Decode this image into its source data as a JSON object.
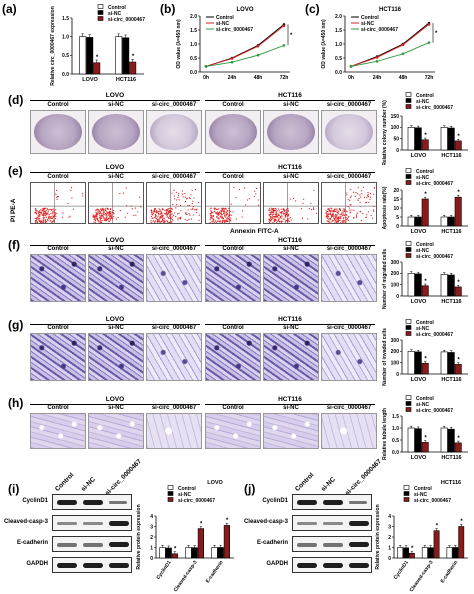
{
  "panels": {
    "a": "(a)",
    "b": "(b)",
    "c": "(c)",
    "d": "(d)",
    "e": "(e)",
    "f": "(f)",
    "g": "(g)",
    "h": "(h)",
    "i": "(i)",
    "j": "(j)"
  },
  "groups": [
    "Control",
    "si-NC",
    "si-circ_0000467"
  ],
  "group_colors": [
    "#ffffff",
    "#000000",
    "#8b1a1a"
  ],
  "cell_lines": [
    "LOVO",
    "HCT116"
  ],
  "sig_mark": "*",
  "flow": {
    "y_axis": "PI PE-A",
    "x_axis": "Annexin FITC-A"
  },
  "blot_proteins": [
    "CyclinD1",
    "Cleaved-casp-3",
    "E-cadherin",
    "GAPDH"
  ],
  "chart_data": [
    {
      "panel": "a",
      "type": "bar",
      "categories": [
        "LOVO",
        "HCT116"
      ],
      "ylabel": "Relative circ_0000467 expression",
      "ylim": [
        0,
        1.5
      ],
      "yticks": [
        "0.0",
        "0.5",
        "1.0",
        "1.5"
      ],
      "series": [
        {
          "name": "Control",
          "values": [
            1.0,
            1.0
          ]
        },
        {
          "name": "si-NC",
          "values": [
            0.98,
            0.97
          ]
        },
        {
          "name": "si-circ_0000467",
          "values": [
            0.3,
            0.32
          ]
        }
      ],
      "sig": [
        2
      ]
    },
    {
      "panel": "b",
      "type": "line",
      "title": "LOVO",
      "xlabel": "",
      "ylabel": "OD value (λ=450 nm)",
      "categories": [
        "0h",
        "24h",
        "48h",
        "72h"
      ],
      "ylim": [
        0,
        2.0
      ],
      "yticks": [
        "0.0",
        "0.5",
        "1.0",
        "1.5",
        "2.0"
      ],
      "series": [
        {
          "name": "Control",
          "values": [
            0.2,
            0.5,
            0.95,
            1.7
          ]
        },
        {
          "name": "si-NC",
          "values": [
            0.2,
            0.48,
            0.92,
            1.65
          ]
        },
        {
          "name": "si-circ_0000467",
          "values": [
            0.2,
            0.35,
            0.6,
            0.95
          ]
        }
      ],
      "sig": [
        3
      ]
    },
    {
      "panel": "c",
      "type": "line",
      "title": "HCT116",
      "xlabel": "",
      "ylabel": "OD value (λ=450 nm)",
      "categories": [
        "0h",
        "24h",
        "48h",
        "72h"
      ],
      "ylim": [
        0,
        2.0
      ],
      "yticks": [
        "0.0",
        "0.5",
        "1.0",
        "1.5",
        "2.0"
      ],
      "series": [
        {
          "name": "Control",
          "values": [
            0.2,
            0.55,
            1.0,
            1.75
          ]
        },
        {
          "name": "si-NC",
          "values": [
            0.2,
            0.52,
            0.97,
            1.7
          ]
        },
        {
          "name": "si-circ_0000467",
          "values": [
            0.2,
            0.38,
            0.65,
            1.05
          ]
        }
      ],
      "sig": [
        3
      ]
    },
    {
      "panel": "d",
      "type": "bar",
      "categories": [
        "LOVO",
        "HCT116"
      ],
      "ylabel": "Relative colony number (%)",
      "ylim": [
        0,
        150
      ],
      "yticks": [
        "0",
        "50",
        "100",
        "150"
      ],
      "series": [
        {
          "name": "Control",
          "values": [
            100,
            100
          ]
        },
        {
          "name": "si-NC",
          "values": [
            98,
            97
          ]
        },
        {
          "name": "si-circ_0000467",
          "values": [
            45,
            40
          ]
        }
      ],
      "sig": [
        2
      ]
    },
    {
      "panel": "e",
      "type": "bar",
      "categories": [
        "LOVO",
        "HCT116"
      ],
      "ylabel": "Apoptosis rate(%)",
      "ylim": [
        0,
        20
      ],
      "yticks": [
        "0",
        "5",
        "10",
        "15",
        "20"
      ],
      "series": [
        {
          "name": "Control",
          "values": [
            5,
            5
          ]
        },
        {
          "name": "si-NC",
          "values": [
            5,
            5
          ]
        },
        {
          "name": "si-circ_0000467",
          "values": [
            15,
            16
          ]
        }
      ],
      "sig": [
        2
      ]
    },
    {
      "panel": "f",
      "type": "bar",
      "categories": [
        "LOVO",
        "HCT116"
      ],
      "ylabel": "Number of migrated cells",
      "ylim": [
        0,
        300
      ],
      "yticks": [
        "0",
        "100",
        "200",
        "300"
      ],
      "series": [
        {
          "name": "Control",
          "values": [
            200,
            190
          ]
        },
        {
          "name": "si-NC",
          "values": [
            195,
            185
          ]
        },
        {
          "name": "si-circ_0000467",
          "values": [
            90,
            80
          ]
        }
      ],
      "sig": [
        2
      ]
    },
    {
      "panel": "g",
      "type": "bar",
      "categories": [
        "LOVO",
        "HCT116"
      ],
      "ylabel": "Number of invaded cells",
      "ylim": [
        0,
        300
      ],
      "yticks": [
        "0",
        "100",
        "200",
        "300"
      ],
      "series": [
        {
          "name": "Control",
          "values": [
            200,
            195
          ]
        },
        {
          "name": "si-NC",
          "values": [
            195,
            190
          ]
        },
        {
          "name": "si-circ_0000467",
          "values": [
            95,
            85
          ]
        }
      ],
      "sig": [
        2
      ]
    },
    {
      "panel": "h",
      "type": "bar",
      "categories": [
        "LOVO",
        "HCT116"
      ],
      "ylabel": "Relative tubule length",
      "ylim": [
        0,
        1.5
      ],
      "yticks": [
        "0.0",
        "0.5",
        "1.0",
        "1.5"
      ],
      "series": [
        {
          "name": "Control",
          "values": [
            1.0,
            1.0
          ]
        },
        {
          "name": "si-NC",
          "values": [
            0.97,
            0.95
          ]
        },
        {
          "name": "si-circ_0000467",
          "values": [
            0.4,
            0.38
          ]
        }
      ],
      "sig": [
        2
      ]
    },
    {
      "panel": "i",
      "type": "bar",
      "title": "LOVO",
      "categories": [
        "CyclinD1",
        "Cleaved-casp-3",
        "E-cadherin"
      ],
      "ylabel": "Relative protein expression",
      "ylim": [
        0,
        4
      ],
      "yticks": [
        "0",
        "1",
        "2",
        "3",
        "4"
      ],
      "series": [
        {
          "name": "Control",
          "values": [
            1.0,
            1.0,
            1.0
          ]
        },
        {
          "name": "si-NC",
          "values": [
            0.95,
            0.98,
            1.0
          ]
        },
        {
          "name": "si-circ_0000467",
          "values": [
            0.4,
            2.8,
            3.1
          ]
        }
      ],
      "sig": [
        2
      ]
    },
    {
      "panel": "j",
      "type": "bar",
      "title": "HCT116",
      "categories": [
        "CyclinD1",
        "Cleaved-casp-3",
        "E-cadherin"
      ],
      "ylabel": "Relative protein expression",
      "ylim": [
        0,
        4
      ],
      "yticks": [
        "0",
        "1",
        "2",
        "3",
        "4"
      ],
      "series": [
        {
          "name": "Control",
          "values": [
            1.0,
            1.0,
            1.0
          ]
        },
        {
          "name": "si-NC",
          "values": [
            0.97,
            0.98,
            1.0
          ]
        },
        {
          "name": "si-circ_0000467",
          "values": [
            0.45,
            2.6,
            3.0
          ]
        }
      ],
      "sig": [
        2
      ]
    }
  ]
}
